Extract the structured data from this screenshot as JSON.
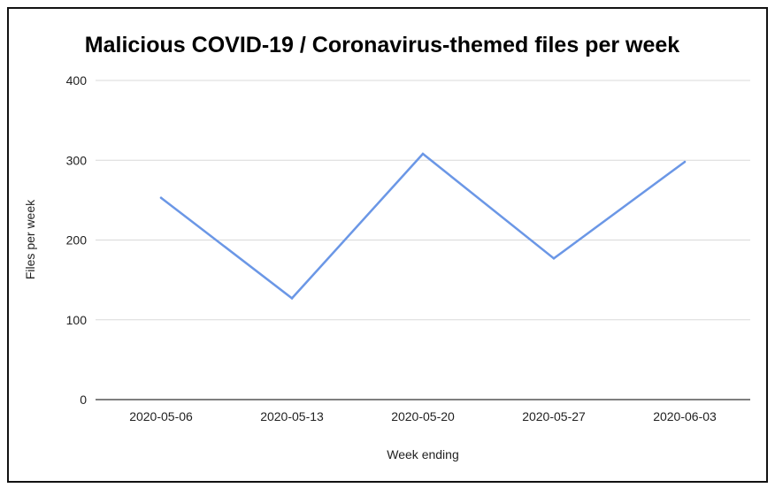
{
  "chart_data": {
    "type": "line",
    "title": "Malicious COVID-19 / Coronavirus-themed files per week",
    "xlabel": "Week ending",
    "ylabel": "Files per week",
    "categories": [
      "2020-05-06",
      "2020-05-13",
      "2020-05-20",
      "2020-05-27",
      "2020-06-03"
    ],
    "series": [
      {
        "values": [
          253,
          127,
          308,
          177,
          298
        ],
        "color": "#6b97e6"
      }
    ],
    "ylim": [
      0,
      400
    ],
    "yticks": [
      0,
      100,
      200,
      300,
      400
    ],
    "grid": true,
    "legend": "none"
  }
}
